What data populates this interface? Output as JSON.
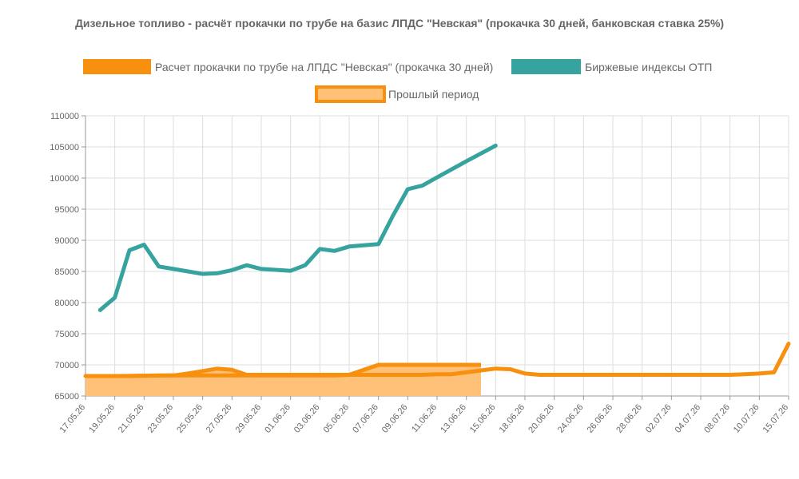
{
  "chart_data": {
    "type": "line",
    "title": "Дизельное топливо - расчёт прокачки по трубе на базис ЛПДС \"Невская\" (прокачка 30 дней, банковская ставка 25%)",
    "xlabel": "",
    "ylabel": "",
    "ylim": [
      65000,
      110000
    ],
    "yticks": [
      "110000",
      "105000",
      "100000",
      "95000",
      "90000",
      "85000",
      "80000",
      "75000",
      "70000",
      "65000"
    ],
    "categories": [
      "17.05.26",
      "19.05.26",
      "21.05.26",
      "23.05.26",
      "25.05.26",
      "27.05.26",
      "29.05.26",
      "01.06.26",
      "03.06.26",
      "05.06.26",
      "07.06.26",
      "09.06.26",
      "11.06.26",
      "13.06.26",
      "15.06.26",
      "18.06.26",
      "20.06.26",
      "24.06.26",
      "26.06.26",
      "28.06.26",
      "02.07.26",
      "04.07.26",
      "08.07.26",
      "10.07.26",
      "15.07.26"
    ],
    "grid": true,
    "legend_position": "top",
    "series": [
      {
        "name": "Расчет прокачки по трубе на ЛПДС \"Невская\" (прокачка 30 дней)",
        "color": "#f7900f",
        "x": [
          0,
          0.5,
          1,
          1.5,
          2,
          2.5,
          3,
          3.5,
          4,
          4.5,
          5,
          5.5,
          6,
          6.5,
          7,
          7.5,
          8,
          8.5,
          9,
          9.5,
          10,
          10.5,
          11,
          11.5,
          12,
          12.5,
          13,
          13.5,
          14,
          14.5,
          15,
          15.5,
          16,
          16.5,
          17,
          17.5,
          18,
          18.5,
          19,
          19.5,
          20,
          20.5,
          21,
          21.5,
          22,
          22.5,
          23,
          23.5,
          24
        ],
        "values": [
          68200,
          68200,
          68200,
          68200,
          68250,
          68300,
          68300,
          68300,
          68300,
          68300,
          68300,
          68300,
          68300,
          68300,
          68300,
          68300,
          68300,
          68300,
          68400,
          68400,
          68400,
          68400,
          68400,
          68400,
          68500,
          68500,
          68800,
          69100,
          69400,
          69300,
          68600,
          68400,
          68400,
          68400,
          68400,
          68400,
          68400,
          68400,
          68400,
          68400,
          68400,
          68400,
          68400,
          68400,
          68400,
          68500,
          68600,
          68800,
          73400
        ]
      },
      {
        "name": "Биржевые индексы ОТП",
        "color": "#36a39e",
        "x": [
          0.5,
          1,
          1.5,
          2,
          2.5,
          3,
          4,
          4.5,
          5,
          5.5,
          6,
          7,
          7.5,
          8,
          8.5,
          9,
          10,
          10.5,
          11,
          11.5,
          12,
          13,
          14
        ],
        "values": [
          78800,
          80800,
          88400,
          89300,
          85800,
          85400,
          84600,
          84700,
          85200,
          86000,
          85400,
          85100,
          86000,
          88600,
          88300,
          89000,
          89400,
          94000,
          98200,
          98800,
          100100,
          102700,
          105200
        ]
      },
      {
        "name": "Прошлый период",
        "color": "#f7900f",
        "fill": "#ffc078",
        "x": [
          0,
          1,
          2,
          3,
          3.5,
          4,
          4.5,
          5,
          5.5,
          6,
          7,
          8,
          9,
          10,
          10.5,
          11,
          12,
          13,
          13.5
        ],
        "values": [
          68200,
          68200,
          68250,
          68300,
          68600,
          69000,
          69400,
          69200,
          68400,
          68400,
          68400,
          68400,
          68400,
          70000,
          70000,
          70000,
          70000,
          70000,
          70000
        ]
      }
    ]
  }
}
